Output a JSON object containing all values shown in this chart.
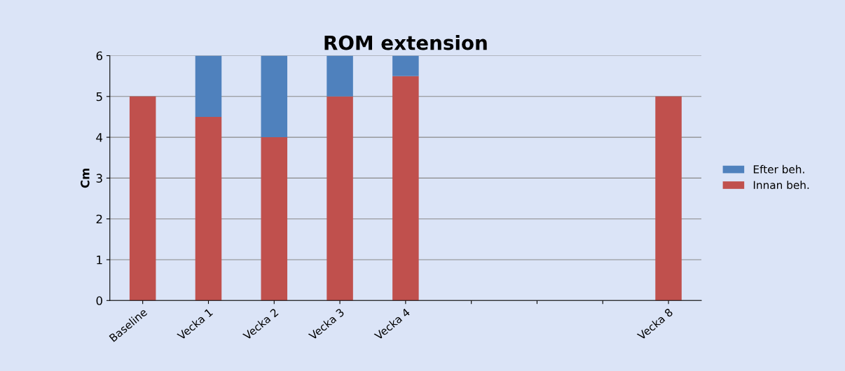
{
  "chart_data": {
    "type": "bar",
    "title": "ROM extension",
    "ylabel": "Cm",
    "categories": [
      "Baseline",
      "Vecka 1",
      "Vecka 2",
      "Vecka 3",
      "Vecka 4",
      null,
      null,
      null,
      "Vecka 8"
    ],
    "stacked": true,
    "series": [
      {
        "name": "Innan beh.",
        "color": "#c0504d",
        "values": [
          5,
          4.5,
          4,
          5,
          5.5,
          null,
          null,
          null,
          5
        ]
      },
      {
        "name": "Efter beh.",
        "color": "#4f81bd",
        "values": [
          null,
          1.5,
          2,
          1,
          0.5,
          null,
          null,
          null,
          null
        ]
      }
    ],
    "ylim": [
      0,
      6
    ],
    "yticks": [
      0,
      1,
      2,
      3,
      4,
      5,
      6
    ],
    "grid": "y",
    "legend": "right"
  }
}
